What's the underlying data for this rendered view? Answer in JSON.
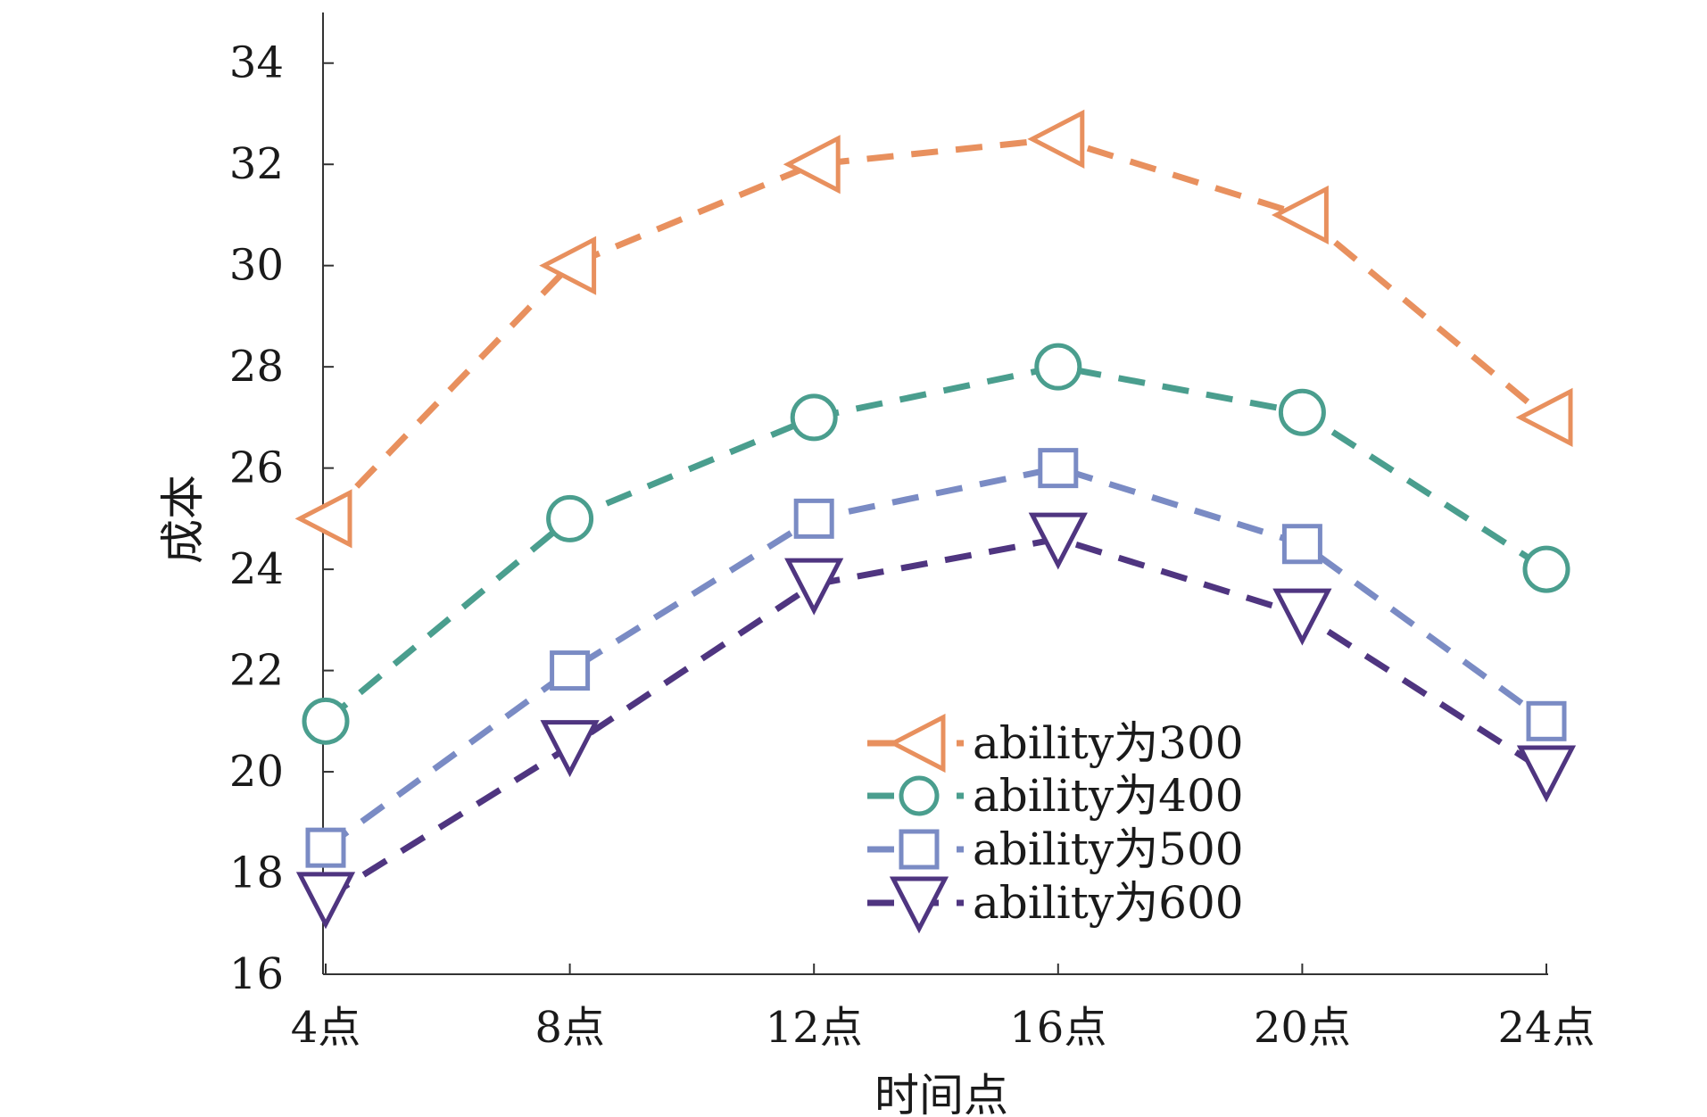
{
  "chart_data": {
    "type": "line",
    "xlabel": "时间点",
    "ylabel": "成本",
    "categories": [
      "4点",
      "8点",
      "12点",
      "16点",
      "20点",
      "24点"
    ],
    "y_ticks": [
      "16",
      "18",
      "20",
      "22",
      "24",
      "26",
      "28",
      "30",
      "32",
      "34"
    ],
    "ylim": [
      16,
      35
    ],
    "grid": false,
    "legend_position": "bottom-center",
    "series": [
      {
        "name": "ability为300",
        "marker": "triangle-left",
        "color": "#E8905E",
        "values": [
          25,
          30,
          32,
          32.5,
          31,
          27
        ]
      },
      {
        "name": "ability为400",
        "marker": "circle",
        "color": "#4A9E8E",
        "values": [
          21,
          25,
          27,
          28,
          27.1,
          24
        ]
      },
      {
        "name": "ability为500",
        "marker": "square",
        "color": "#7A8BC4",
        "values": [
          18.5,
          22,
          25,
          26,
          24.5,
          21
        ]
      },
      {
        "name": "ability为600",
        "marker": "triangle-down",
        "color": "#4F3580",
        "values": [
          17.5,
          20.5,
          23.7,
          24.6,
          23.1,
          20
        ]
      }
    ]
  }
}
